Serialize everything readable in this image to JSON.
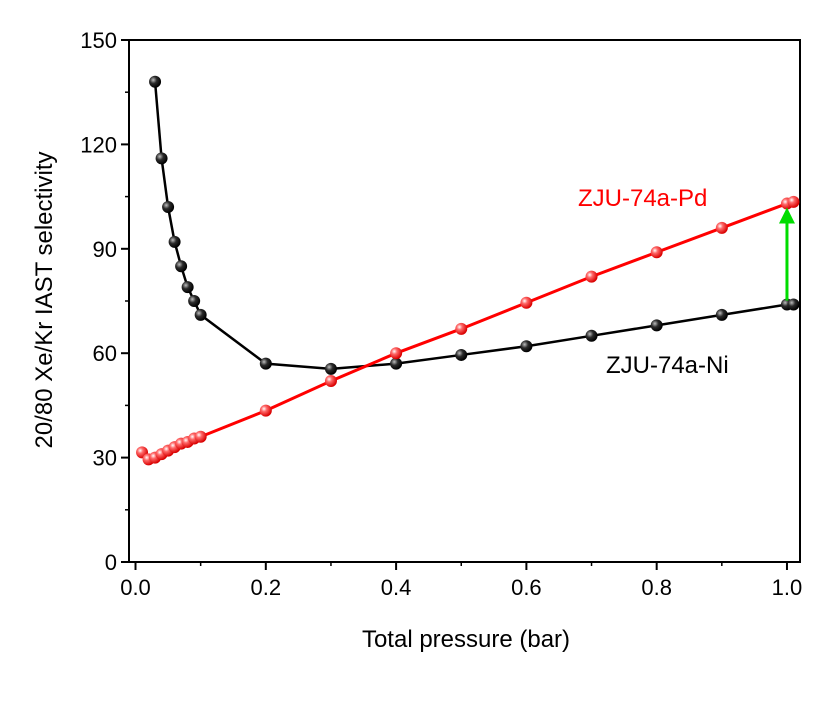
{
  "chart_data": {
    "type": "line",
    "title": "",
    "xlabel": "Total pressure (bar)",
    "ylabel": "20/80 Xe/Kr IAST selectivity",
    "xlim": [
      -0.01,
      1.02
    ],
    "ylim": [
      0,
      150
    ],
    "xticks": [
      0.0,
      0.2,
      0.4,
      0.6,
      0.8,
      1.0
    ],
    "xtick_labels": [
      "0.0",
      "0.2",
      "0.4",
      "0.6",
      "0.8",
      "1.0"
    ],
    "yticks": [
      0,
      30,
      60,
      90,
      120,
      150
    ],
    "ytick_labels": [
      "0",
      "30",
      "60",
      "90",
      "120",
      "150"
    ],
    "grid": false,
    "series": [
      {
        "name": "ZJU-74a-Ni",
        "color": "#000000",
        "x": [
          0.03,
          0.04,
          0.05,
          0.06,
          0.07,
          0.08,
          0.09,
          0.1,
          0.2,
          0.3,
          0.4,
          0.5,
          0.6,
          0.7,
          0.8,
          0.9,
          1.0,
          1.01
        ],
        "y": [
          138,
          116,
          102,
          92,
          85,
          79,
          75,
          71,
          57,
          55.5,
          57,
          59.5,
          62,
          65,
          68,
          71,
          74,
          74
        ]
      },
      {
        "name": "ZJU-74a-Pd",
        "color": "#ff0000",
        "x": [
          0.01,
          0.02,
          0.03,
          0.04,
          0.05,
          0.06,
          0.07,
          0.08,
          0.09,
          0.1,
          0.2,
          0.3,
          0.4,
          0.5,
          0.6,
          0.7,
          0.8,
          0.9,
          1.0,
          1.01
        ],
        "y": [
          31.5,
          29.5,
          30,
          31,
          32,
          33,
          34,
          34.5,
          35.5,
          36,
          43.5,
          52,
          60,
          67,
          74.5,
          82,
          89,
          96,
          103,
          103.5
        ]
      }
    ],
    "annotations": [
      {
        "type": "arrow",
        "color": "#00dd00",
        "x": 1.0,
        "y_from": 74,
        "y_to": 103
      }
    ]
  }
}
